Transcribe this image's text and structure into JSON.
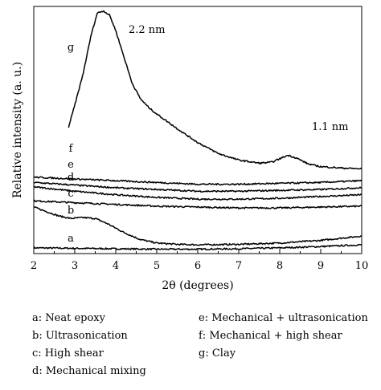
{
  "chart_data": {
    "type": "line",
    "xlabel": "2θ (degrees)",
    "ylabel": "Relative intensity (a. u.)",
    "xlim": [
      2,
      10
    ],
    "xticks": [
      "2",
      "3",
      "4",
      "5",
      "6",
      "7",
      "8",
      "9",
      "10"
    ],
    "y_ticks_labeled": false,
    "grid": false,
    "annotations": [
      "2.2 nm",
      "1.1 nm"
    ],
    "series": [
      {
        "name": "a",
        "legend": "a: Neat epoxy",
        "points": [
          [
            2.0,
            0.05
          ],
          [
            3.0,
            0.04
          ],
          [
            4.0,
            0.03
          ],
          [
            5.0,
            0.02
          ],
          [
            6.0,
            0.02
          ],
          [
            7.0,
            0.03
          ],
          [
            8.0,
            0.05
          ],
          [
            9.0,
            0.08
          ],
          [
            10.0,
            0.12
          ]
        ]
      },
      {
        "name": "b",
        "legend": "b: Ultrasonication",
        "points": [
          [
            2.0,
            0.98
          ],
          [
            2.3,
            0.88
          ],
          [
            2.6,
            0.78
          ],
          [
            2.9,
            0.72
          ],
          [
            3.2,
            0.74
          ],
          [
            3.5,
            0.72
          ],
          [
            3.8,
            0.6
          ],
          [
            4.2,
            0.4
          ],
          [
            4.6,
            0.24
          ],
          [
            5.0,
            0.16
          ],
          [
            5.5,
            0.13
          ],
          [
            6.0,
            0.12
          ],
          [
            7.0,
            0.13
          ],
          [
            8.0,
            0.16
          ],
          [
            9.0,
            0.22
          ],
          [
            10.0,
            0.32
          ]
        ]
      },
      {
        "name": "c",
        "legend": "c: High shear",
        "points": [
          [
            2.0,
            1.12
          ],
          [
            3.0,
            1.08
          ],
          [
            4.0,
            1.04
          ],
          [
            5.0,
            1.0
          ],
          [
            6.0,
            0.98
          ],
          [
            7.0,
            0.96
          ],
          [
            8.0,
            0.96
          ],
          [
            9.0,
            0.98
          ],
          [
            10.0,
            1.0
          ]
        ]
      },
      {
        "name": "d",
        "legend": "d: Mechanical mixing",
        "points": [
          [
            2.0,
            1.44
          ],
          [
            3.0,
            1.34
          ],
          [
            4.0,
            1.26
          ],
          [
            5.0,
            1.2
          ],
          [
            6.0,
            1.16
          ],
          [
            7.0,
            1.16
          ],
          [
            8.0,
            1.18
          ],
          [
            9.0,
            1.22
          ],
          [
            10.0,
            1.26
          ]
        ]
      },
      {
        "name": "e",
        "legend": "e: Mechanical + ultrasonication",
        "points": [
          [
            2.0,
            1.54
          ],
          [
            3.0,
            1.48
          ],
          [
            4.0,
            1.42
          ],
          [
            5.0,
            1.38
          ],
          [
            6.0,
            1.34
          ],
          [
            7.0,
            1.34
          ],
          [
            8.0,
            1.36
          ],
          [
            9.0,
            1.38
          ],
          [
            10.0,
            1.42
          ]
        ]
      },
      {
        "name": "f",
        "legend": "f: Mechanical + high shear",
        "points": [
          [
            2.0,
            1.66
          ],
          [
            3.0,
            1.62
          ],
          [
            4.0,
            1.58
          ],
          [
            5.0,
            1.54
          ],
          [
            6.0,
            1.5
          ],
          [
            7.0,
            1.5
          ],
          [
            8.0,
            1.52
          ],
          [
            9.0,
            1.54
          ],
          [
            10.0,
            1.58
          ]
        ]
      },
      {
        "name": "g",
        "legend": "g: Clay",
        "points": [
          [
            2.85,
            2.8
          ],
          [
            3.0,
            3.3
          ],
          [
            3.2,
            4.0
          ],
          [
            3.4,
            4.9
          ],
          [
            3.55,
            5.4
          ],
          [
            3.7,
            5.45
          ],
          [
            3.85,
            5.35
          ],
          [
            4.0,
            5.0
          ],
          [
            4.2,
            4.4
          ],
          [
            4.4,
            3.8
          ],
          [
            4.6,
            3.45
          ],
          [
            4.8,
            3.25
          ],
          [
            5.0,
            3.1
          ],
          [
            5.3,
            2.9
          ],
          [
            5.6,
            2.7
          ],
          [
            6.0,
            2.45
          ],
          [
            6.5,
            2.2
          ],
          [
            7.0,
            2.05
          ],
          [
            7.5,
            1.98
          ],
          [
            7.8,
            2.0
          ],
          [
            8.0,
            2.08
          ],
          [
            8.2,
            2.16
          ],
          [
            8.4,
            2.1
          ],
          [
            8.7,
            1.96
          ],
          [
            9.0,
            1.9
          ],
          [
            9.5,
            1.87
          ],
          [
            10.0,
            1.85
          ]
        ]
      }
    ]
  }
}
